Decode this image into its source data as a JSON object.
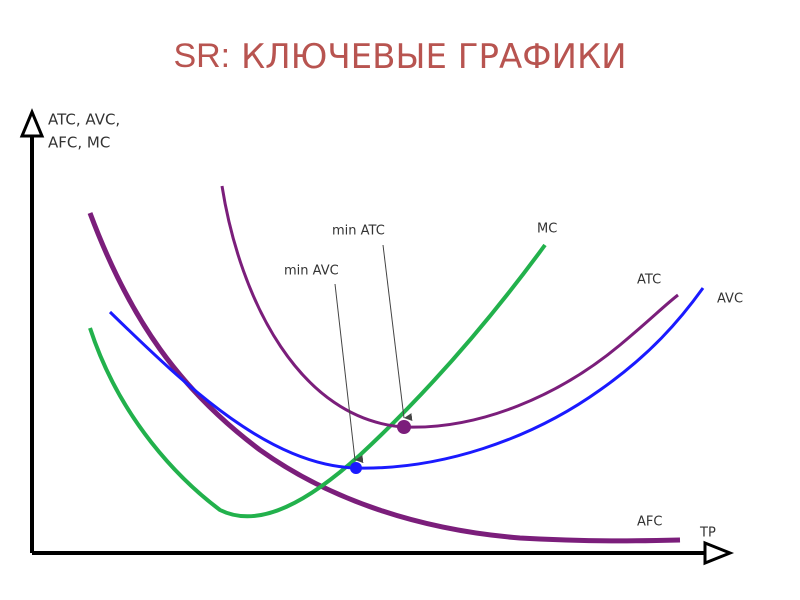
{
  "title": {
    "prefix": "SR:",
    "main": "КЛЮЧЕВЫЕ ГРАФИКИ"
  },
  "y_axis_label": [
    "ATC, AVC,",
    "AFC, MC"
  ],
  "x_axis_label": "TP",
  "curves": {
    "mc": "MC",
    "atc": "ATC",
    "avc": "AVC",
    "afc": "AFC"
  },
  "annotations": {
    "min_avc": "min AVC",
    "min_atc": "min ATC"
  }
}
